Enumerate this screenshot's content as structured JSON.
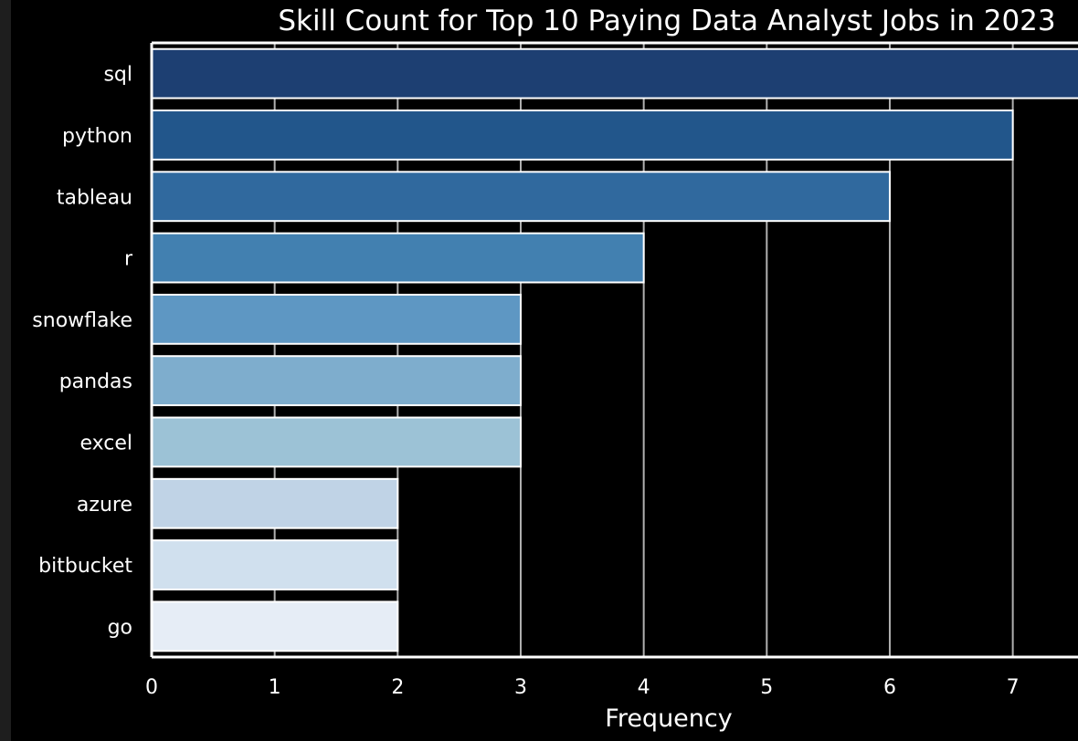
{
  "chart_data": {
    "type": "bar",
    "orientation": "horizontal",
    "title": "Skill Count for Top 10 Paying Data Analyst Jobs in 2023",
    "xlabel": "Frequency",
    "ylabel": "",
    "categories": [
      "sql",
      "python",
      "tableau",
      "r",
      "snowflake",
      "pandas",
      "excel",
      "azure",
      "bitbucket",
      "go"
    ],
    "values": [
      8,
      7,
      6,
      4,
      3,
      3,
      3,
      2,
      2,
      2
    ],
    "x_ticks": [
      0,
      1,
      2,
      3,
      4,
      5,
      6,
      7
    ],
    "xlim": [
      0,
      7.53
    ],
    "grid": "vertical",
    "colors": [
      "#1d3f72",
      "#22568b",
      "#30699e",
      "#4280b0",
      "#5e97c3",
      "#7eadcd",
      "#9cc2d6",
      "#c0d3e6",
      "#d0e0ee",
      "#e6edf6"
    ],
    "background": "#000000",
    "edge_color": "#ffffff"
  }
}
